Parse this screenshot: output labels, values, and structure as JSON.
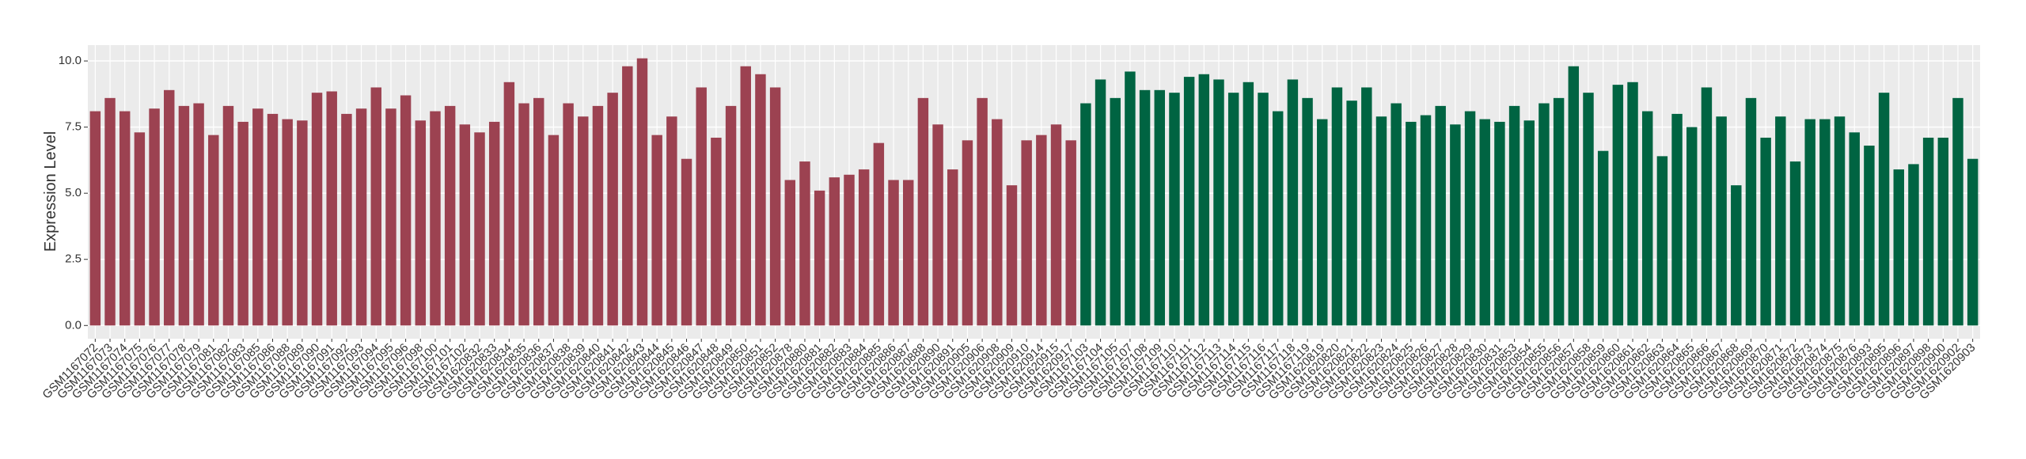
{
  "chart_data": {
    "type": "bar",
    "y_label": "Expression Level",
    "categories": [
      "GSM1167072",
      "GSM1167073",
      "GSM1167074",
      "GSM1167075",
      "GSM1167076",
      "GSM1167077",
      "GSM1167078",
      "GSM1167079",
      "GSM1167081",
      "GSM1167082",
      "GSM1167083",
      "GSM1167085",
      "GSM1167086",
      "GSM1167088",
      "GSM1167089",
      "GSM1167090",
      "GSM1167091",
      "GSM1167092",
      "GSM1167093",
      "GSM1167094",
      "GSM1167095",
      "GSM1167096",
      "GSM1167098",
      "GSM1167100",
      "GSM1167101",
      "GSM1167102",
      "GSM1620832",
      "GSM1620833",
      "GSM1620834",
      "GSM1620835",
      "GSM1620836",
      "GSM1620837",
      "GSM1620838",
      "GSM1620839",
      "GSM1620840",
      "GSM1620841",
      "GSM1620842",
      "GSM1620843",
      "GSM1620844",
      "GSM1620845",
      "GSM1620846",
      "GSM1620847",
      "GSM1620848",
      "GSM1620849",
      "GSM1620850",
      "GSM1620851",
      "GSM1620852",
      "GSM1620878",
      "GSM1620880",
      "GSM1620881",
      "GSM1620882",
      "GSM1620883",
      "GSM1620884",
      "GSM1620885",
      "GSM1620886",
      "GSM1620887",
      "GSM1620888",
      "GSM1620890",
      "GSM1620891",
      "GSM1620905",
      "GSM1620906",
      "GSM1620908",
      "GSM1620909",
      "GSM1620910",
      "GSM1620914",
      "GSM1620915",
      "GSM1620917",
      "GSM1167103",
      "GSM1167104",
      "GSM1167105",
      "GSM1167107",
      "GSM1167108",
      "GSM1167109",
      "GSM1167110",
      "GSM1167111",
      "GSM1167112",
      "GSM1167113",
      "GSM1167114",
      "GSM1167115",
      "GSM1167116",
      "GSM1167117",
      "GSM1167118",
      "GSM1167119",
      "GSM1620819",
      "GSM1620820",
      "GSM1620821",
      "GSM1620822",
      "GSM1620823",
      "GSM1620824",
      "GSM1620825",
      "GSM1620826",
      "GSM1620827",
      "GSM1620828",
      "GSM1620829",
      "GSM1620830",
      "GSM1620831",
      "GSM1620853",
      "GSM1620854",
      "GSM1620855",
      "GSM1620856",
      "GSM1620857",
      "GSM1620858",
      "GSM1620859",
      "GSM1620860",
      "GSM1620861",
      "GSM1620862",
      "GSM1620863",
      "GSM1620864",
      "GSM1620865",
      "GSM1620866",
      "GSM1620867",
      "GSM1620868",
      "GSM1620869",
      "GSM1620870",
      "GSM1620871",
      "GSM1620872",
      "GSM1620873",
      "GSM1620874",
      "GSM1620875",
      "GSM1620876",
      "GSM1620893",
      "GSM1620895",
      "GSM1620896",
      "GSM1620897",
      "GSM1620898",
      "GSM1620900",
      "GSM1620902",
      "GSM1620903"
    ],
    "values": [
      8.1,
      8.6,
      8.1,
      7.3,
      8.2,
      8.9,
      8.3,
      8.4,
      7.2,
      8.3,
      7.7,
      8.2,
      8.0,
      7.8,
      7.75,
      8.8,
      8.85,
      8.0,
      8.2,
      9.0,
      8.2,
      8.7,
      7.75,
      8.1,
      8.3,
      7.6,
      7.3,
      7.7,
      9.2,
      8.4,
      8.6,
      7.2,
      8.4,
      7.9,
      8.3,
      8.8,
      9.8,
      10.1,
      7.2,
      7.9,
      6.3,
      9.0,
      7.1,
      8.3,
      9.8,
      9.5,
      9.0,
      5.5,
      6.2,
      5.1,
      5.6,
      5.7,
      5.9,
      6.9,
      5.5,
      5.5,
      8.6,
      7.6,
      5.9,
      7.0,
      8.6,
      7.8,
      5.3,
      7.0,
      7.2,
      7.6,
      7.0,
      8.4,
      9.3,
      8.6,
      9.6,
      8.9,
      8.9,
      8.8,
      9.4,
      9.5,
      9.3,
      8.8,
      9.2,
      8.8,
      8.1,
      9.3,
      8.6,
      7.8,
      9.0,
      8.5,
      9.0,
      7.9,
      8.4,
      7.7,
      7.95,
      8.3,
      7.6,
      8.1,
      7.8,
      7.7,
      8.3,
      7.75,
      8.4,
      8.6,
      9.8,
      8.8,
      6.6,
      9.1,
      9.2,
      8.1,
      6.4,
      8.0,
      7.5,
      9.0,
      7.9,
      5.3,
      8.6,
      7.1,
      7.9,
      6.2,
      7.8,
      7.8,
      7.9,
      7.3,
      6.8,
      8.8,
      5.9,
      6.1,
      7.1,
      7.1,
      8.6,
      6.3
    ],
    "colors": [
      "#9c4251",
      "#9c4251",
      "#9c4251",
      "#9c4251",
      "#9c4251",
      "#9c4251",
      "#9c4251",
      "#9c4251",
      "#9c4251",
      "#9c4251",
      "#9c4251",
      "#9c4251",
      "#9c4251",
      "#9c4251",
      "#9c4251",
      "#9c4251",
      "#9c4251",
      "#9c4251",
      "#9c4251",
      "#9c4251",
      "#9c4251",
      "#9c4251",
      "#9c4251",
      "#9c4251",
      "#9c4251",
      "#9c4251",
      "#9c4251",
      "#9c4251",
      "#9c4251",
      "#9c4251",
      "#9c4251",
      "#9c4251",
      "#9c4251",
      "#9c4251",
      "#9c4251",
      "#9c4251",
      "#9c4251",
      "#9c4251",
      "#9c4251",
      "#9c4251",
      "#9c4251",
      "#9c4251",
      "#9c4251",
      "#9c4251",
      "#9c4251",
      "#9c4251",
      "#9c4251",
      "#9c4251",
      "#9c4251",
      "#9c4251",
      "#9c4251",
      "#9c4251",
      "#9c4251",
      "#9c4251",
      "#9c4251",
      "#9c4251",
      "#9c4251",
      "#9c4251",
      "#9c4251",
      "#9c4251",
      "#9c4251",
      "#9c4251",
      "#9c4251",
      "#9c4251",
      "#9c4251",
      "#9c4251",
      "#9c4251",
      "#006442",
      "#006442",
      "#006442",
      "#006442",
      "#006442",
      "#006442",
      "#006442",
      "#006442",
      "#006442",
      "#006442",
      "#006442",
      "#006442",
      "#006442",
      "#006442",
      "#006442",
      "#006442",
      "#006442",
      "#006442",
      "#006442",
      "#006442",
      "#006442",
      "#006442",
      "#006442",
      "#006442",
      "#006442",
      "#006442",
      "#006442",
      "#006442",
      "#006442",
      "#006442",
      "#006442",
      "#006442",
      "#006442",
      "#006442",
      "#006442",
      "#006442",
      "#006442",
      "#006442",
      "#006442",
      "#006442",
      "#006442",
      "#006442",
      "#006442",
      "#006442",
      "#006442",
      "#006442",
      "#006442",
      "#006442",
      "#006442",
      "#006442",
      "#006442",
      "#006442",
      "#006442",
      "#006442",
      "#006442",
      "#006442",
      "#006442",
      "#006442",
      "#006442",
      "#006442",
      "#006442"
    ],
    "ylim": [
      -0.5,
      10.6
    ],
    "yticks": [
      {
        "value": 0,
        "label": "0.0"
      },
      2.5,
      {
        "value": 5,
        "label": "5.0"
      },
      7.5,
      {
        "value": 10,
        "label": "10.0"
      }
    ],
    "grid": true
  }
}
